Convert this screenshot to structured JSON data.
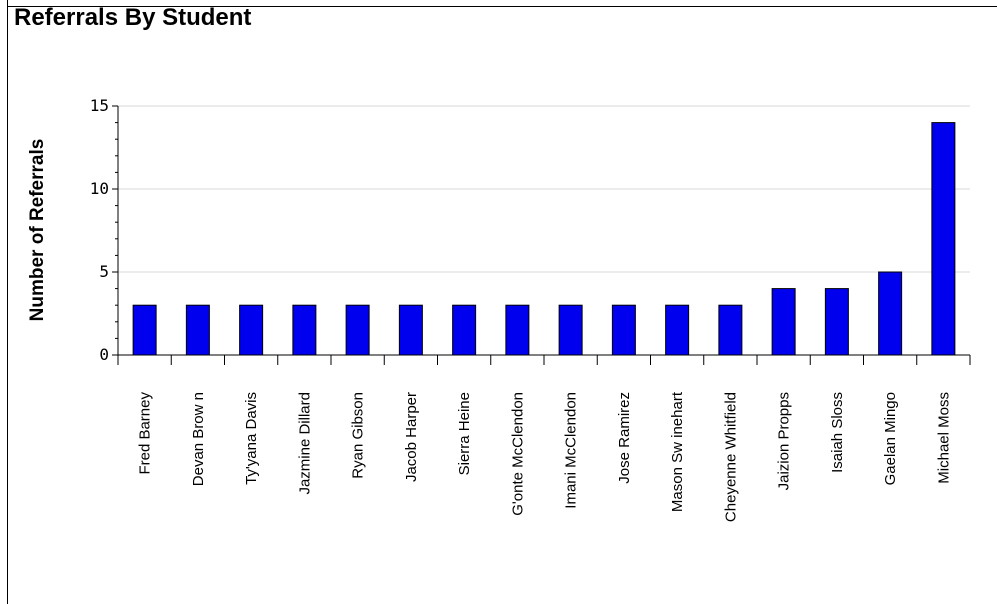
{
  "chart_data": {
    "type": "bar",
    "title": "Referrals By Student",
    "xlabel": "",
    "ylabel": "Number of Referrals",
    "ylim": [
      0,
      15
    ],
    "yticks": [
      "0",
      "5",
      "10",
      "15"
    ],
    "grid": true,
    "categories": [
      "Fred Barney",
      "Devan Brow n",
      "Ty'yana Davis",
      "Jazmine Dillard",
      "Ryan Gibson",
      "Jacob Harper",
      "Sierra Heine",
      "G'onte McClendon",
      "Imani McClendon",
      "Jose Ramirez",
      "Mason Sw inehart",
      "Cheyenne Whitfield",
      "Jaizion Propps",
      "Isaiah Sloss",
      "Gaelan Mingo",
      "Michael Moss"
    ],
    "values": [
      3,
      3,
      3,
      3,
      3,
      3,
      3,
      3,
      3,
      3,
      3,
      3,
      4,
      4,
      5,
      14
    ],
    "bar_color": "#0000ee"
  }
}
